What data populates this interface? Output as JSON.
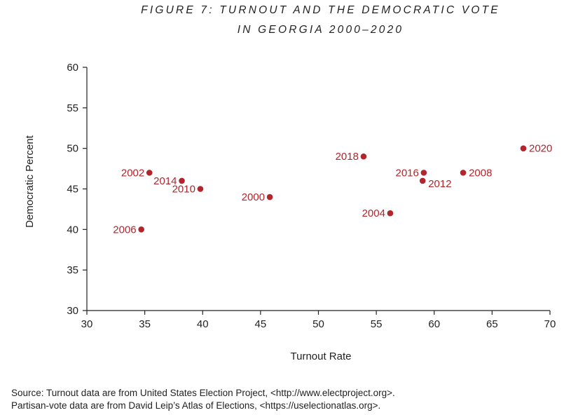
{
  "chart_data": {
    "type": "scatter",
    "title_line1": "FIGURE 7: TURNOUT AND THE DEMOCRATIC VOTE",
    "title_line2": "IN GEORGIA 2000–2020",
    "xlabel": "Turnout Rate",
    "ylabel": "Democratic Percent",
    "xlim": [
      30,
      70
    ],
    "ylim": [
      30,
      60
    ],
    "x_ticks": [
      30,
      35,
      40,
      45,
      50,
      55,
      60,
      65,
      70
    ],
    "y_ticks": [
      30,
      35,
      40,
      45,
      50,
      55,
      60
    ],
    "grid": false,
    "marker_color": "#b0262c",
    "points": [
      {
        "label": "2000",
        "x": 45.8,
        "y": 44,
        "label_side": "left"
      },
      {
        "label": "2002",
        "x": 35.4,
        "y": 47,
        "label_side": "left"
      },
      {
        "label": "2004",
        "x": 56.2,
        "y": 42,
        "label_side": "left"
      },
      {
        "label": "2006",
        "x": 34.7,
        "y": 40,
        "label_side": "left"
      },
      {
        "label": "2008",
        "x": 62.5,
        "y": 47,
        "label_side": "right"
      },
      {
        "label": "2010",
        "x": 39.8,
        "y": 45,
        "label_side": "left"
      },
      {
        "label": "2012",
        "x": 59.0,
        "y": 46,
        "label_side": "right-below"
      },
      {
        "label": "2014",
        "x": 38.2,
        "y": 46,
        "label_side": "left"
      },
      {
        "label": "2016",
        "x": 59.1,
        "y": 47,
        "label_side": "left"
      },
      {
        "label": "2018",
        "x": 53.9,
        "y": 49,
        "label_side": "left"
      },
      {
        "label": "2020",
        "x": 67.7,
        "y": 50,
        "label_side": "right"
      }
    ]
  },
  "source": {
    "line1": "Source: Turnout data are from United States Election Project, <http://www.electproject.org>.",
    "line2": "Partisan-vote data are from David Leip’s Atlas of Elections, <https://uselectionatlas.org>."
  }
}
